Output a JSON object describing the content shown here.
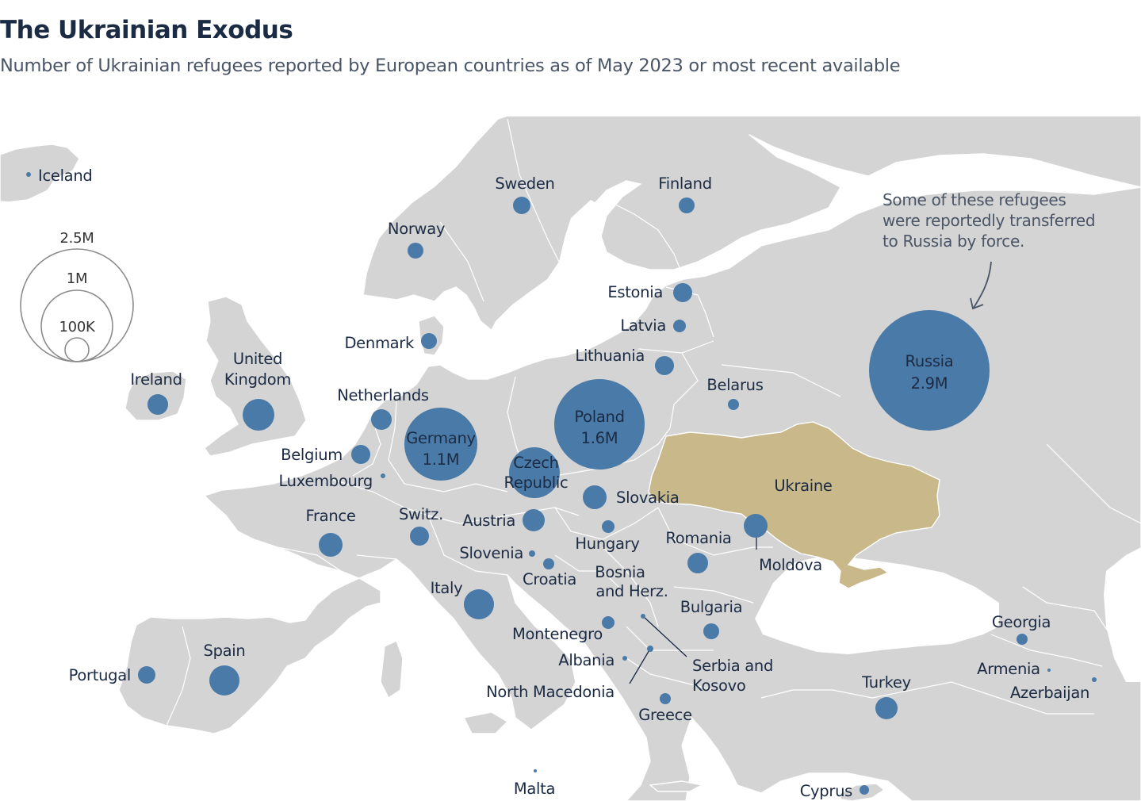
{
  "title": "The Ukrainian Exodus",
  "subtitle": "Number of Ukrainian refugees reported by European countries as of May 2023 or most recent available",
  "colors": {
    "land": "#d4d4d4",
    "border": "#ffffff",
    "bubble": "#4a7aa8",
    "ukraine": "#c8b88a",
    "text": "#1c2b44"
  },
  "legend": {
    "label_large": "2.5M",
    "label_mid": "1M",
    "label_small": "100K"
  },
  "annotation": {
    "line1": "Some of these refugees",
    "line2": "were reportedly transferred",
    "line3": "to Russia by force."
  },
  "highlight": {
    "ukraine": "Ukraine"
  },
  "countries": [
    {
      "id": "iceland",
      "label": "Iceland"
    },
    {
      "id": "sweden",
      "label": "Sweden"
    },
    {
      "id": "finland",
      "label": "Finland"
    },
    {
      "id": "norway",
      "label": "Norway"
    },
    {
      "id": "estonia",
      "label": "Estonia"
    },
    {
      "id": "latvia",
      "label": "Latvia"
    },
    {
      "id": "denmark",
      "label": "Denmark"
    },
    {
      "id": "lithuania",
      "label": "Lithuania"
    },
    {
      "id": "ireland",
      "label": "Ireland"
    },
    {
      "id": "uk",
      "label": "United",
      "label2": "Kingdom"
    },
    {
      "id": "netherlands",
      "label": "Netherlands"
    },
    {
      "id": "belarus",
      "label": "Belarus"
    },
    {
      "id": "germany",
      "label": "Germany",
      "value_label": "1.1M"
    },
    {
      "id": "poland",
      "label": "Poland",
      "value_label": "1.6M"
    },
    {
      "id": "russia",
      "label": "Russia",
      "value_label": "2.9M"
    },
    {
      "id": "belgium",
      "label": "Belgium"
    },
    {
      "id": "luxembourg",
      "label": "Luxembourg"
    },
    {
      "id": "czech",
      "label": "Czech",
      "label2": "Republic"
    },
    {
      "id": "slovakia",
      "label": "Slovakia"
    },
    {
      "id": "france",
      "label": "France"
    },
    {
      "id": "switzerland",
      "label": "Switz."
    },
    {
      "id": "austria",
      "label": "Austria"
    },
    {
      "id": "hungary",
      "label": "Hungary"
    },
    {
      "id": "romania",
      "label": "Romania"
    },
    {
      "id": "moldova",
      "label": "Moldova"
    },
    {
      "id": "slovenia",
      "label": "Slovenia"
    },
    {
      "id": "croatia",
      "label": "Croatia"
    },
    {
      "id": "bosnia",
      "label": "Bosnia",
      "label2": "and Herz."
    },
    {
      "id": "italy",
      "label": "Italy"
    },
    {
      "id": "bulgaria",
      "label": "Bulgaria"
    },
    {
      "id": "montenegro",
      "label": "Montenegro"
    },
    {
      "id": "albania",
      "label": "Albania"
    },
    {
      "id": "serbia",
      "label": "Serbia and",
      "label2": "Kosovo"
    },
    {
      "id": "north_macedonia",
      "label": "North Macedonia"
    },
    {
      "id": "greece",
      "label": "Greece"
    },
    {
      "id": "georgia",
      "label": "Georgia"
    },
    {
      "id": "armenia",
      "label": "Armenia"
    },
    {
      "id": "azerbaijan",
      "label": "Azerbaijan"
    },
    {
      "id": "turkey",
      "label": "Turkey"
    },
    {
      "id": "spain",
      "label": "Spain"
    },
    {
      "id": "portugal",
      "label": "Portugal"
    },
    {
      "id": "malta",
      "label": "Malta"
    },
    {
      "id": "cyprus",
      "label": "Cyprus"
    }
  ]
}
